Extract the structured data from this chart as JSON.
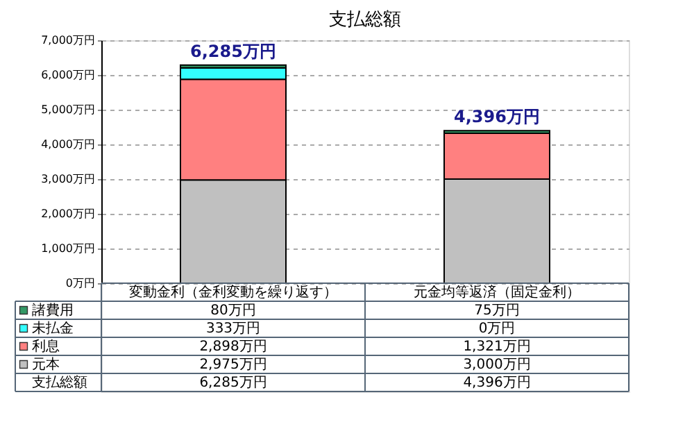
{
  "chart_data": {
    "type": "bar",
    "title": "支払総額",
    "categories": [
      "変動金利（金利変動を繰り返す）",
      "元金均等返済（固定金利）"
    ],
    "stacked": true,
    "series": [
      {
        "name": "元本",
        "color": "#c0c0c0",
        "values": [
          2975,
          3000
        ],
        "value_labels": [
          "2,975万円",
          "3,000万円"
        ]
      },
      {
        "name": "利息",
        "color": "#ff8080",
        "values": [
          2898,
          1321
        ],
        "value_labels": [
          "2,898万円",
          "1,321万円"
        ]
      },
      {
        "name": "未払金",
        "color": "#33ffff",
        "values": [
          333,
          0
        ],
        "value_labels": [
          "333万円",
          "0万円"
        ]
      },
      {
        "name": "諸費用",
        "color": "#339966",
        "values": [
          80,
          75
        ],
        "value_labels": [
          "80万円",
          "75万円"
        ]
      }
    ],
    "totals": [
      "6,285万円",
      "4,396万円"
    ],
    "annotations": [
      "支払総額"
    ],
    "ylim": [
      0,
      7000
    ],
    "yticks": [
      {
        "value": 0,
        "label": "0万円"
      },
      {
        "value": 1000,
        "label": "1,000万円"
      },
      {
        "value": 2000,
        "label": "2,000万円"
      },
      {
        "value": 3000,
        "label": "3,000万円"
      },
      {
        "value": 4000,
        "label": "4,000万円"
      },
      {
        "value": 5000,
        "label": "5,000万円"
      },
      {
        "value": 6000,
        "label": "6,000万円"
      },
      {
        "value": 7000,
        "label": "7,000万円"
      }
    ],
    "grid": "y",
    "legend": "bottom"
  }
}
